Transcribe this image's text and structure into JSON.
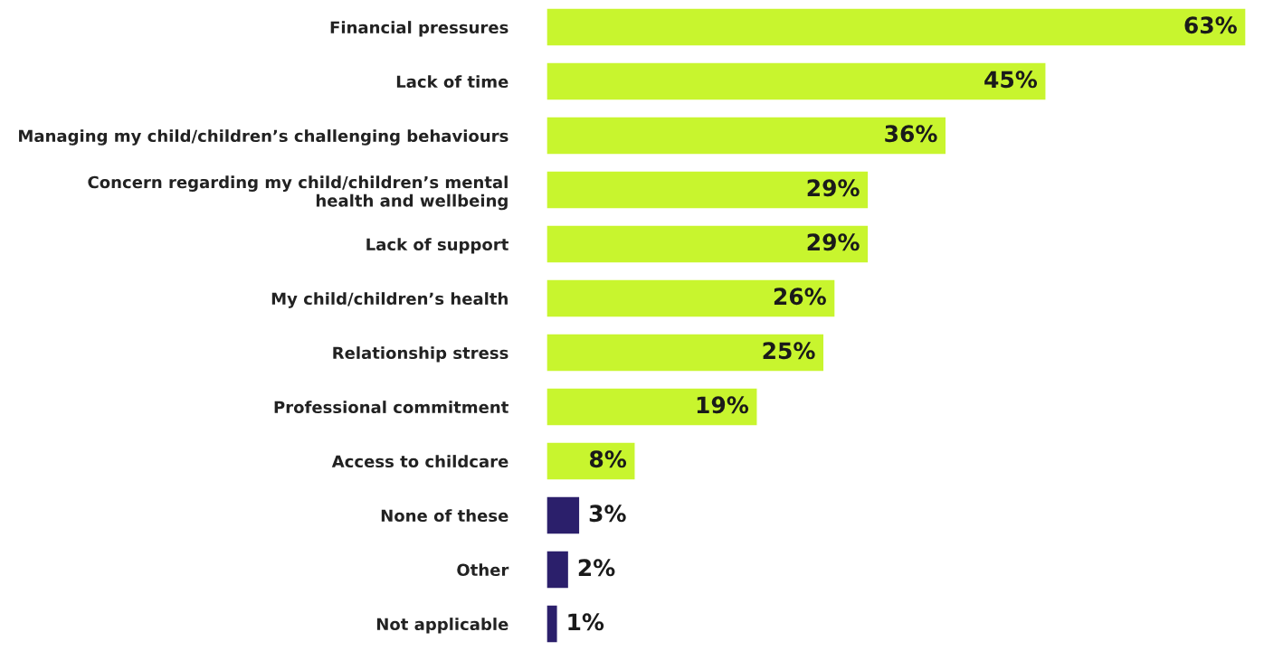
{
  "chart_data": {
    "type": "bar",
    "orientation": "horizontal",
    "categories": [
      "Financial pressures",
      "Lack of time",
      "Managing my child/children’s challenging behaviours",
      "Concern regarding my child/children’s mental\nhealth and wellbeing",
      "Lack of support",
      "My child/children’s health",
      "Relationship stress",
      "Professional commitment",
      "Access to childcare",
      "None of these",
      "Other",
      "Not applicable"
    ],
    "values": [
      63,
      45,
      36,
      29,
      29,
      26,
      25,
      19,
      8,
      3,
      2,
      1
    ],
    "colors": [
      "#c8f52e",
      "#c8f52e",
      "#c8f52e",
      "#c8f52e",
      "#c8f52e",
      "#c8f52e",
      "#c8f52e",
      "#c8f52e",
      "#c8f52e",
      "#2b1f6b",
      "#2b1f6b",
      "#2b1f6b"
    ],
    "value_labels": [
      "63%",
      "45%",
      "36%",
      "29%",
      "29%",
      "26%",
      "25%",
      "19%",
      "8%",
      "3%",
      "2%",
      "1%"
    ],
    "tick_labels": "y",
    "grid": false,
    "legend": false
  }
}
